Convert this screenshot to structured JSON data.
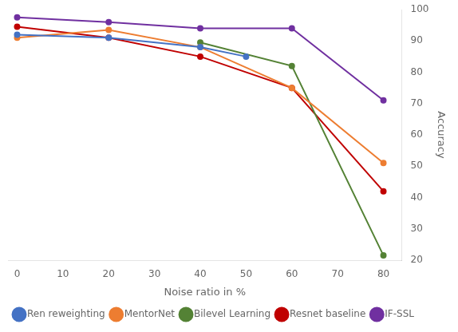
{
  "chart_data": {
    "type": "line",
    "xlabel": "Noise ratio in %",
    "ylabel": "Accuracy",
    "xlim": [
      -2,
      84
    ],
    "ylim": [
      20,
      100
    ],
    "xticks": [
      0,
      10,
      20,
      30,
      40,
      50,
      60,
      70,
      80
    ],
    "yticks": [
      20,
      30,
      40,
      50,
      60,
      70,
      80,
      90,
      100
    ],
    "grid": false,
    "legend": "lower left",
    "marker": "circle",
    "line_style": "solid",
    "series": [
      {
        "name": "Ren reweighting",
        "color": "#4472c4",
        "x": [
          0,
          20,
          40,
          50
        ],
        "values": [
          92.0,
          91.0,
          88.0,
          85.0
        ]
      },
      {
        "name": "MentorNet",
        "color": "#ed7d31",
        "x": [
          0,
          20,
          40,
          60,
          80
        ],
        "values": [
          91.0,
          93.5,
          88.0,
          75.0,
          51.0
        ]
      },
      {
        "name": "Bilevel Learning",
        "color": "#548235",
        "x": [
          40,
          60,
          80
        ],
        "values": [
          89.5,
          82.0,
          21.5
        ]
      },
      {
        "name": "Resnet baseline",
        "color": "#c00000",
        "x": [
          0,
          20,
          40,
          60,
          80
        ],
        "values": [
          94.5,
          91.0,
          85.0,
          75.0,
          42.0
        ]
      },
      {
        "name": "IF-SSL",
        "color": "#7030a0",
        "x": [
          0,
          20,
          40,
          60,
          80
        ],
        "values": [
          97.5,
          96.0,
          94.0,
          94.0,
          71.0
        ]
      }
    ]
  }
}
